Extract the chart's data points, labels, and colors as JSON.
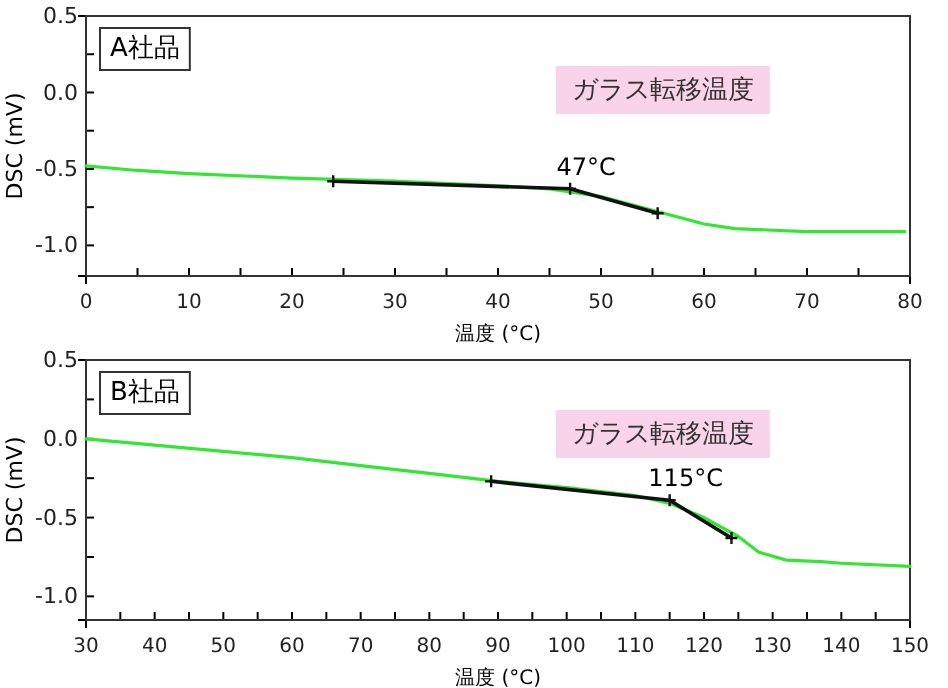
{
  "chart_data": [
    {
      "type": "line",
      "title": "A社品",
      "xlabel": "温度 (°C)",
      "ylabel": "DSC (mV)",
      "xlim": [
        0,
        80
      ],
      "ylim": [
        -1.2,
        0.5
      ],
      "xticks": [
        0,
        {
          "value": 5,
          "label": null
        },
        10,
        {
          "value": 15,
          "label": null
        },
        20,
        {
          "value": 25,
          "label": null
        },
        30,
        {
          "value": 35,
          "label": null
        },
        40,
        {
          "value": 45,
          "label": null
        },
        50,
        {
          "value": 55,
          "label": null
        },
        60,
        {
          "value": 65,
          "label": null
        },
        70,
        {
          "value": 75,
          "label": null
        },
        80
      ],
      "yticks": [
        {
          "value": -1.0,
          "label": "-1.0"
        },
        {
          "value": -0.75,
          "label": null
        },
        {
          "value": -0.5,
          "label": "-0.5"
        },
        {
          "value": -0.25,
          "label": null
        },
        {
          "value": 0,
          "label": "0.0"
        },
        {
          "value": 0.25,
          "label": null
        },
        {
          "value": 0.5,
          "label": "0.5"
        }
      ],
      "grid": false,
      "series": [
        {
          "color": "#33e633",
          "line_style": "solid",
          "marker": "none",
          "x": [
            0,
            5,
            10,
            20,
            30,
            40,
            45,
            50,
            55,
            60,
            63,
            70,
            79.5
          ],
          "values": [
            -0.48,
            -0.51,
            -0.53,
            -0.56,
            -0.58,
            -0.61,
            -0.63,
            -0.68,
            -0.77,
            -0.86,
            -0.89,
            -0.91,
            -0.91
          ]
        },
        {
          "color": "#111111",
          "line_style": "solid",
          "marker": "cross",
          "x": [
            24,
            47,
            55.5
          ],
          "values": [
            -0.58,
            -0.63,
            -0.79
          ]
        }
      ],
      "annotations": [
        "ガラス転移温度",
        {
          "text": "47°C",
          "x": 47,
          "y": -0.63
        }
      ]
    },
    {
      "type": "line",
      "title": "B社品",
      "xlabel": "温度 (°C)",
      "ylabel": "DSC (mV)",
      "xlim": [
        30,
        150
      ],
      "ylim": [
        -1.15,
        0.5
      ],
      "xticks": [
        30,
        {
          "value": 35,
          "label": null
        },
        40,
        {
          "value": 45,
          "label": null
        },
        50,
        {
          "value": 55,
          "label": null
        },
        60,
        {
          "value": 65,
          "label": null
        },
        70,
        {
          "value": 75,
          "label": null
        },
        80,
        {
          "value": 85,
          "label": null
        },
        90,
        {
          "value": 95,
          "label": null
        },
        100,
        {
          "value": 105,
          "label": null
        },
        110,
        {
          "value": 115,
          "label": null
        },
        120,
        {
          "value": 125,
          "label": null
        },
        130,
        {
          "value": 135,
          "label": null
        },
        140,
        {
          "value": 145,
          "label": null
        },
        150
      ],
      "yticks": [
        {
          "value": -1.0,
          "label": "-1.0"
        },
        {
          "value": -0.75,
          "label": null
        },
        {
          "value": -0.5,
          "label": "-0.5"
        },
        {
          "value": -0.25,
          "label": null
        },
        {
          "value": 0,
          "label": "0.0"
        },
        {
          "value": 0.25,
          "label": null
        },
        {
          "value": 0.5,
          "label": "0.5"
        }
      ],
      "grid": false,
      "series": [
        {
          "color": "#33e633",
          "line_style": "solid",
          "marker": "none",
          "x": [
            30,
            40,
            50,
            60,
            70,
            80,
            90,
            100,
            110,
            115,
            120,
            125,
            128,
            132,
            137,
            140,
            150
          ],
          "values": [
            0.0,
            -0.04,
            -0.08,
            -0.12,
            -0.17,
            -0.22,
            -0.27,
            -0.31,
            -0.36,
            -0.41,
            -0.5,
            -0.62,
            -0.72,
            -0.77,
            -0.78,
            -0.79,
            -0.81
          ]
        },
        {
          "color": "#111111",
          "line_style": "solid",
          "marker": "cross",
          "x": [
            89,
            115,
            124
          ],
          "values": [
            -0.27,
            -0.39,
            -0.63
          ]
        }
      ],
      "annotations": [
        "ガラス転移温度",
        {
          "text": "115°C",
          "x": 115,
          "y": -0.39
        }
      ]
    }
  ]
}
